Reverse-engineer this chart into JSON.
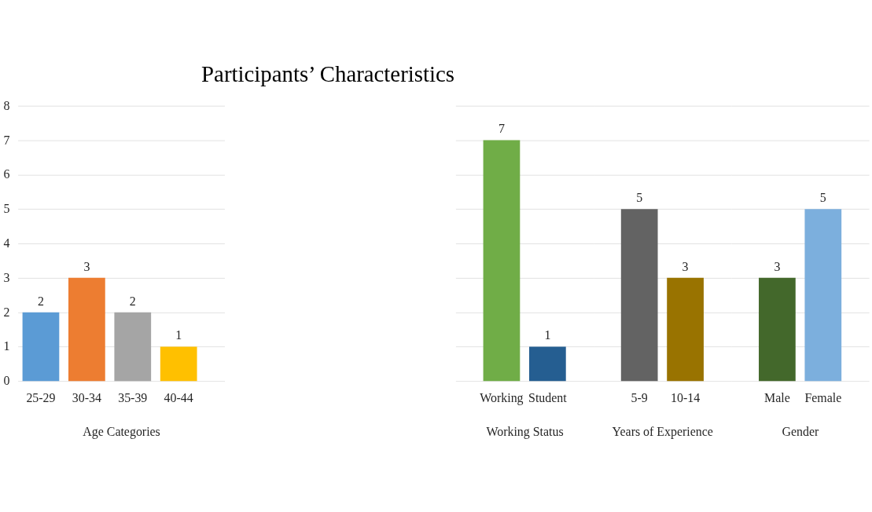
{
  "chart_data": [
    {
      "type": "bar",
      "title": "Participants’ Characteristics",
      "xlabel": "Age Categories",
      "categories": [
        "25-29",
        "30-34",
        "35-39",
        "40-44"
      ],
      "values": [
        2,
        3,
        2,
        1
      ],
      "colors": [
        "#5b9bd5",
        "#ed7d31",
        "#a5a5a5",
        "#ffc000"
      ],
      "ylim": [
        0,
        8
      ],
      "yticks": [
        0,
        1,
        2,
        3,
        4,
        5,
        6,
        7,
        8
      ],
      "grid": "y",
      "data_labels": true
    },
    {
      "type": "bar",
      "xlabel": "Working Status",
      "categories": [
        "Working",
        "Student"
      ],
      "values": [
        7,
        1
      ],
      "colors": [
        "#70ad47",
        "#255e91"
      ],
      "ylim": [
        0,
        8
      ],
      "yticks": [
        0,
        1,
        2,
        3,
        4,
        5,
        6,
        7,
        8
      ],
      "grid": "y",
      "data_labels": true,
      "tick_labels": "x"
    },
    {
      "type": "bar",
      "xlabel": "Years of Experience",
      "categories": [
        "5-9",
        "10-14"
      ],
      "values": [
        5,
        3
      ],
      "colors": [
        "#636363",
        "#997300"
      ],
      "ylim": [
        0,
        8
      ],
      "yticks": [
        0,
        1,
        2,
        3,
        4,
        5,
        6,
        7,
        8
      ],
      "grid": "y",
      "data_labels": true,
      "tick_labels": "x"
    },
    {
      "type": "bar",
      "xlabel": "Gender",
      "categories": [
        "Male",
        "Female"
      ],
      "values": [
        3,
        5
      ],
      "colors": [
        "#43682b",
        "#7cafdd"
      ],
      "ylim": [
        0,
        8
      ],
      "yticks": [
        0,
        1,
        2,
        3,
        4,
        5,
        6,
        7,
        8
      ],
      "grid": "y",
      "data_labels": true,
      "tick_labels": "x"
    }
  ]
}
